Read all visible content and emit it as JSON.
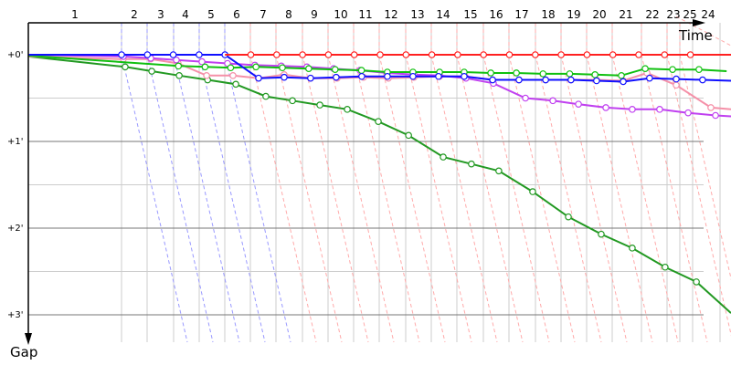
{
  "chart_data": {
    "type": "line",
    "title": "",
    "xlabel": "Time",
    "ylabel": "Gap",
    "x_tick_labels": [
      "1",
      "2",
      "3",
      "4",
      "5",
      "6",
      "7",
      "8",
      "9",
      "10",
      "11",
      "12",
      "13",
      "14",
      "15",
      "16",
      "17",
      "18",
      "19",
      "20",
      "21",
      "22",
      "23",
      "25",
      "24"
    ],
    "y_tick_labels": [
      "+0'",
      "+1'",
      "+2'",
      "+3'"
    ],
    "y_ticks": [
      0,
      1,
      2,
      3
    ],
    "ylim": [
      0,
      3.3
    ],
    "xlim_laps": [
      0,
      24.57
    ],
    "y_inverted": true,
    "grid": true,
    "colors": {
      "red": "#ff2020",
      "blue": "#1010ff",
      "green": "#10c010",
      "dark_green": "#229922",
      "purple": "#c040f0",
      "pink": "#f590a8"
    },
    "series": [
      {
        "color": "#229922",
        "points": [
          [
            0,
            0.02
          ],
          [
            1.14,
            0.14
          ],
          [
            2.17,
            0.19
          ],
          [
            3.23,
            0.24
          ],
          [
            4.33,
            0.29
          ],
          [
            5.42,
            0.34
          ],
          [
            6.58,
            0.48
          ],
          [
            7.61,
            0.53
          ],
          [
            8.67,
            0.58
          ],
          [
            9.73,
            0.63
          ],
          [
            10.93,
            0.77
          ],
          [
            12.1,
            0.93
          ],
          [
            13.44,
            1.18
          ],
          [
            14.53,
            1.26
          ],
          [
            15.59,
            1.34
          ],
          [
            16.9,
            1.58
          ],
          [
            18.28,
            1.87
          ],
          [
            19.55,
            2.07
          ],
          [
            20.75,
            2.23
          ],
          [
            22.02,
            2.45
          ],
          [
            23.23,
            2.62
          ],
          [
            24.57,
            2.98
          ]
        ]
      },
      {
        "color": "#f590a8",
        "points": [
          [
            0,
            0.02
          ],
          [
            1.07,
            0.05
          ],
          [
            2.13,
            0.05
          ],
          [
            3.19,
            0.1
          ],
          [
            4.29,
            0.24
          ],
          [
            5.31,
            0.24
          ],
          [
            6.3,
            0.27
          ],
          [
            7.29,
            0.23
          ],
          [
            8.31,
            0.27
          ],
          [
            9.34,
            0.27
          ],
          [
            10.36,
            0.26
          ],
          [
            11.32,
            0.27
          ],
          [
            12.31,
            0.26
          ],
          [
            13.3,
            0.25
          ],
          [
            14.29,
            0.25
          ],
          [
            15.35,
            0.29
          ],
          [
            16.37,
            0.29
          ],
          [
            17.4,
            0.29
          ],
          [
            18.38,
            0.29
          ],
          [
            19.37,
            0.29
          ],
          [
            20.4,
            0.3
          ],
          [
            21.32,
            0.21
          ],
          [
            22.45,
            0.35
          ],
          [
            23.79,
            0.61
          ],
          [
            24.57,
            0.63
          ]
        ]
      },
      {
        "color": "#c040f0",
        "points": [
          [
            0,
            0.0
          ],
          [
            1.07,
            0.02
          ],
          [
            2.13,
            0.04
          ],
          [
            3.12,
            0.06
          ],
          [
            4.11,
            0.08
          ],
          [
            5.1,
            0.1
          ],
          [
            6.16,
            0.12
          ],
          [
            7.18,
            0.13
          ],
          [
            8.17,
            0.14
          ],
          [
            9.2,
            0.16
          ],
          [
            10.22,
            0.18
          ],
          [
            11.28,
            0.21
          ],
          [
            12.31,
            0.23
          ],
          [
            13.3,
            0.24
          ],
          [
            14.32,
            0.27
          ],
          [
            15.38,
            0.33
          ],
          [
            16.62,
            0.5
          ],
          [
            17.68,
            0.53
          ],
          [
            18.67,
            0.57
          ],
          [
            19.73,
            0.61
          ],
          [
            20.75,
            0.63
          ],
          [
            21.81,
            0.63
          ],
          [
            22.91,
            0.67
          ],
          [
            23.97,
            0.7
          ],
          [
            24.57,
            0.71
          ]
        ]
      },
      {
        "color": "#10c010",
        "points": [
          [
            0,
            0.01
          ],
          [
            3.2,
            0.13
          ],
          [
            4.23,
            0.14
          ],
          [
            5.22,
            0.15
          ],
          [
            6.2,
            0.14
          ],
          [
            7.22,
            0.15
          ],
          [
            8.24,
            0.16
          ],
          [
            9.26,
            0.17
          ],
          [
            10.28,
            0.18
          ],
          [
            11.28,
            0.2
          ],
          [
            12.27,
            0.2
          ],
          [
            13.3,
            0.2
          ],
          [
            14.25,
            0.2
          ],
          [
            15.28,
            0.21
          ],
          [
            16.27,
            0.21
          ],
          [
            17.3,
            0.22
          ],
          [
            18.33,
            0.22
          ],
          [
            19.31,
            0.23
          ],
          [
            20.33,
            0.24
          ],
          [
            21.25,
            0.16
          ],
          [
            22.31,
            0.17
          ],
          [
            23.33,
            0.17
          ],
          [
            24.4,
            0.19
          ]
        ]
      },
      {
        "color": "#1010ff",
        "points": [
          [
            0,
            0
          ],
          [
            1,
            0
          ],
          [
            2,
            0
          ],
          [
            3,
            0
          ],
          [
            4,
            0
          ],
          [
            5,
            0
          ],
          [
            6.3,
            0.27
          ],
          [
            7.29,
            0.26
          ],
          [
            8.31,
            0.27
          ],
          [
            9.3,
            0.26
          ],
          [
            10.29,
            0.25
          ],
          [
            11.28,
            0.25
          ],
          [
            12.27,
            0.25
          ],
          [
            13.26,
            0.25
          ],
          [
            14.25,
            0.25
          ],
          [
            15.35,
            0.29
          ],
          [
            16.37,
            0.29
          ],
          [
            17.4,
            0.29
          ],
          [
            18.38,
            0.29
          ],
          [
            19.37,
            0.3
          ],
          [
            20.4,
            0.31
          ],
          [
            21.42,
            0.27
          ],
          [
            22.45,
            0.28
          ],
          [
            23.47,
            0.29
          ],
          [
            24.57,
            0.3
          ]
        ]
      },
      {
        "color": "#ff2020",
        "points": [
          [
            5,
            0
          ],
          [
            6,
            0
          ],
          [
            7,
            0
          ],
          [
            8,
            0
          ],
          [
            9,
            0
          ],
          [
            10,
            0
          ],
          [
            11,
            0
          ],
          [
            12,
            0
          ],
          [
            13,
            0
          ],
          [
            14,
            0
          ],
          [
            15,
            0
          ],
          [
            16,
            0
          ],
          [
            17,
            0
          ],
          [
            18,
            0
          ],
          [
            19,
            0
          ],
          [
            20,
            0
          ],
          [
            21,
            0
          ],
          [
            22,
            0
          ],
          [
            23,
            0
          ],
          [
            24.57,
            0
          ]
        ]
      }
    ]
  }
}
